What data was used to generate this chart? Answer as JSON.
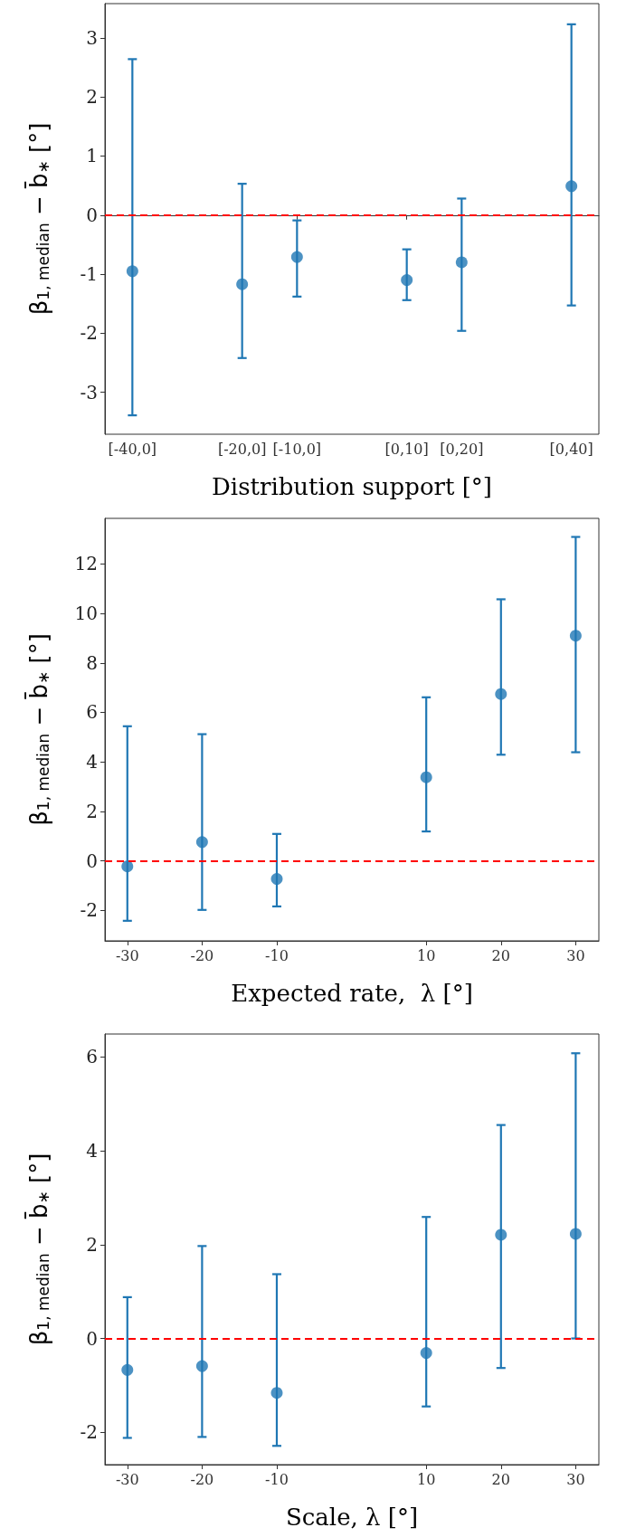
{
  "chart_data": [
    {
      "type": "scatter",
      "xlabel": "Distribution support [°]",
      "ylabel": "β$_{1, median}$ − b̄$_{∗}$ [°]",
      "categories": [
        "[-40,0]",
        null,
        "[-20,0]",
        "[-10,0]",
        null,
        "[0,10]",
        "[0,20]",
        null,
        "[0,40]"
      ],
      "ylim": [
        -3.71,
        3.58
      ],
      "yticks": [
        -3,
        -2,
        -1,
        0,
        1,
        2,
        3
      ],
      "grid": false,
      "marker": "circle",
      "series": [
        {
          "color": "#1f77b4",
          "values": [
            -0.95,
            null,
            -1.17,
            -0.71,
            null,
            -1.1,
            -0.8,
            null,
            0.49
          ],
          "errors": [
            [
              -3.39,
              2.64
            ],
            null,
            [
              -2.42,
              0.53
            ],
            [
              -1.38,
              -0.09
            ],
            null,
            [
              -1.44,
              -0.58
            ],
            [
              -1.96,
              0.28
            ],
            null,
            [
              -1.53,
              3.23
            ]
          ]
        }
      ],
      "ref_lines": [
        {
          "axis": "y",
          "value": 0,
          "color": "#ff0000",
          "line_style": "dashed"
        }
      ]
    },
    {
      "type": "scatter",
      "xlabel": "Expected rate,  λ [°]",
      "ylabel": "β$_{1, median}$ − b̄$_{∗}$ [°]",
      "x": [
        -30,
        -20,
        -10,
        10,
        20,
        30
      ],
      "xlim": [
        -33,
        33.1
      ],
      "xticks": [
        -30,
        -20,
        -10,
        10,
        20,
        30
      ],
      "ylim": [
        -3.23,
        13.84
      ],
      "yticks": [
        -2,
        0,
        2,
        4,
        6,
        8,
        10,
        12
      ],
      "grid": false,
      "marker": "circle",
      "series": [
        {
          "color": "#1f77b4",
          "values": [
            -0.22,
            0.76,
            -0.73,
            3.38,
            6.74,
            9.1
          ],
          "errors": [
            [
              -2.42,
              5.44
            ],
            [
              -1.98,
              5.12
            ],
            [
              -1.84,
              1.09
            ],
            [
              1.19,
              6.61
            ],
            [
              4.29,
              10.57
            ],
            [
              4.39,
              13.09
            ]
          ]
        }
      ],
      "ref_lines": [
        {
          "axis": "y",
          "value": 0,
          "color": "#ff0000",
          "line_style": "dashed"
        }
      ]
    },
    {
      "type": "scatter",
      "xlabel": "Scale, λ [°]",
      "ylabel": "β$_{1, median}$ − b̄$_{∗}$ [°]",
      "x": [
        -30,
        -20,
        -10,
        10,
        20,
        30
      ],
      "xlim": [
        -33,
        33.1
      ],
      "xticks": [
        -30,
        -20,
        -10,
        10,
        20,
        30
      ],
      "ylim": [
        -2.69,
        6.49
      ],
      "yticks": [
        -2,
        0,
        2,
        4,
        6
      ],
      "grid": false,
      "marker": "circle",
      "series": [
        {
          "color": "#1f77b4",
          "values": [
            -0.67,
            -0.59,
            -1.16,
            -0.31,
            2.21,
            2.23
          ],
          "errors": [
            [
              -2.12,
              0.88
            ],
            [
              -2.1,
              1.97
            ],
            [
              -2.29,
              1.37
            ],
            [
              -1.45,
              2.59
            ],
            [
              -0.63,
              4.55
            ],
            [
              0,
              6.08
            ]
          ]
        }
      ],
      "ref_lines": [
        {
          "axis": "y",
          "value": 0,
          "color": "#ff0000",
          "line_style": "dashed"
        }
      ]
    }
  ]
}
